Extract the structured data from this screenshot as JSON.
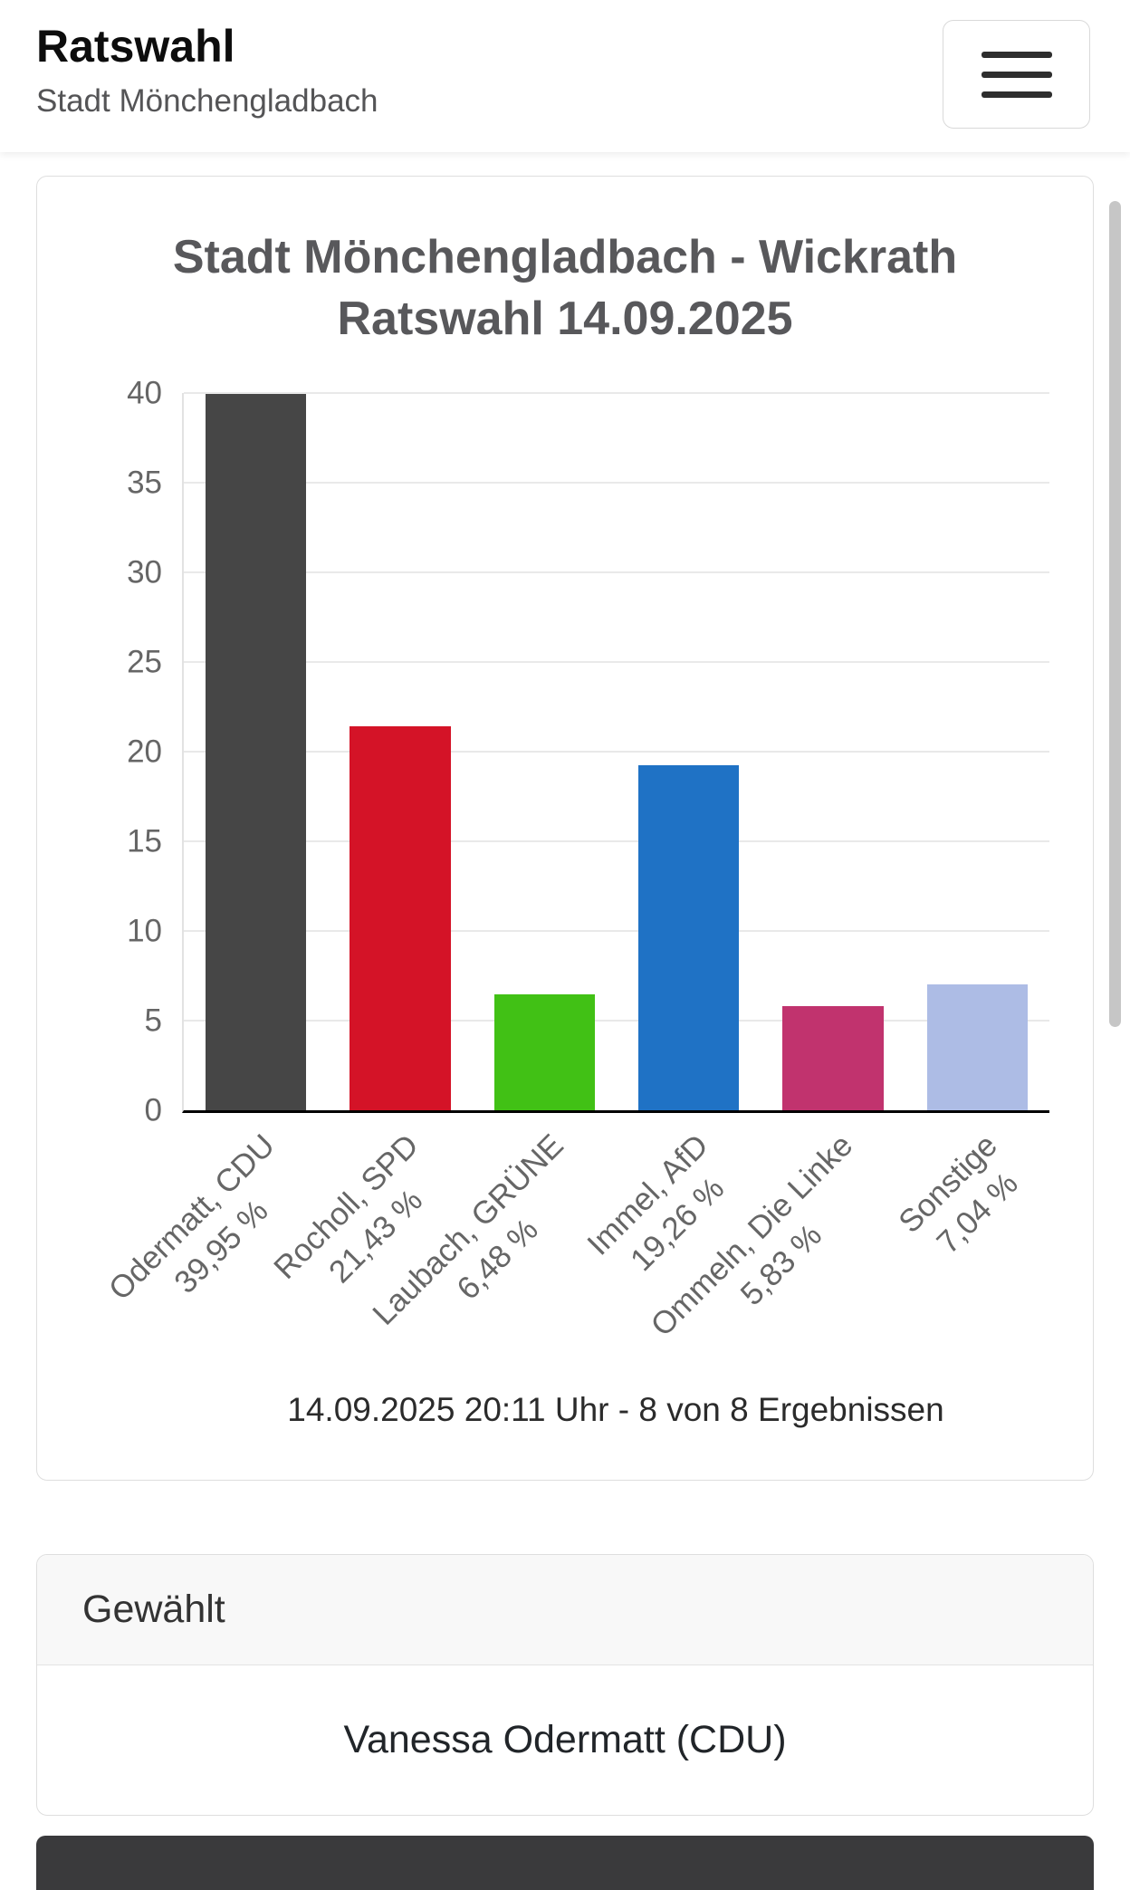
{
  "header": {
    "title": "Ratswahl",
    "subtitle": "Stadt Mönchengladbach",
    "menu_icon": "hamburger-icon"
  },
  "chart_data": {
    "type": "bar",
    "title": "Stadt Mönchengladbach - Wickrath Ratswahl 14.09.2025",
    "title_lines": [
      "Stadt Mönchengladbach - Wickrath",
      "Ratswahl 14.09.2025"
    ],
    "categories": [
      "Odermatt, CDU",
      "Rocholl, SPD",
      "Laubach, GRÜNE",
      "Immel, AfD",
      "Ommeln, Die Linke",
      "Sonstige"
    ],
    "values": [
      39.95,
      21.43,
      6.48,
      19.26,
      5.83,
      7.04
    ],
    "value_labels": [
      "39,95 %",
      "21,43 %",
      "6,48 %",
      "19,26 %",
      "5,83 %",
      "7,04 %"
    ],
    "bar_colors": [
      "#464646",
      "#d41327",
      "#41c115",
      "#1f72c5",
      "#c1336e",
      "#adbce5"
    ],
    "xlabel": "",
    "ylabel": "",
    "ylim": [
      0,
      40
    ],
    "yticks": [
      0,
      5,
      10,
      15,
      20,
      25,
      30,
      35,
      40
    ],
    "grid": true,
    "legend": false,
    "caption": "14.09.2025 20:11 Uhr - 8 von 8 Ergebnissen"
  },
  "elected": {
    "header": "Gewählt",
    "name": "Vanessa Odermatt (CDU)"
  },
  "colors": {
    "axis": "#000000",
    "grid": "#e9e9e9",
    "tick_text": "#666666",
    "chart_title_text": "#58585b",
    "next_section_peek": "#3a3a3c"
  }
}
